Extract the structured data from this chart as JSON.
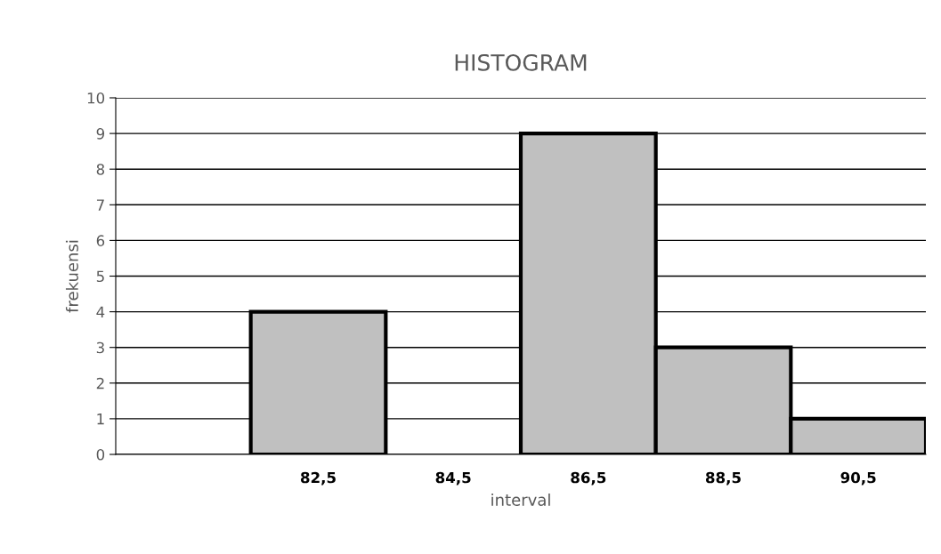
{
  "chart_data": {
    "type": "bar",
    "title": "HISTOGRAM",
    "xlabel": "interval",
    "ylabel": "frekuensi",
    "categories": [
      null,
      "82,5",
      "84,5",
      "86,5",
      "88,5",
      "90,5"
    ],
    "values": [
      null,
      4,
      null,
      9,
      3,
      1
    ],
    "color": "#c0c0c0",
    "ylim": [
      0,
      10
    ],
    "yticks": [
      0,
      1,
      2,
      3,
      4,
      5,
      6,
      7,
      8,
      9,
      10
    ],
    "grid": "y",
    "legend": false
  }
}
